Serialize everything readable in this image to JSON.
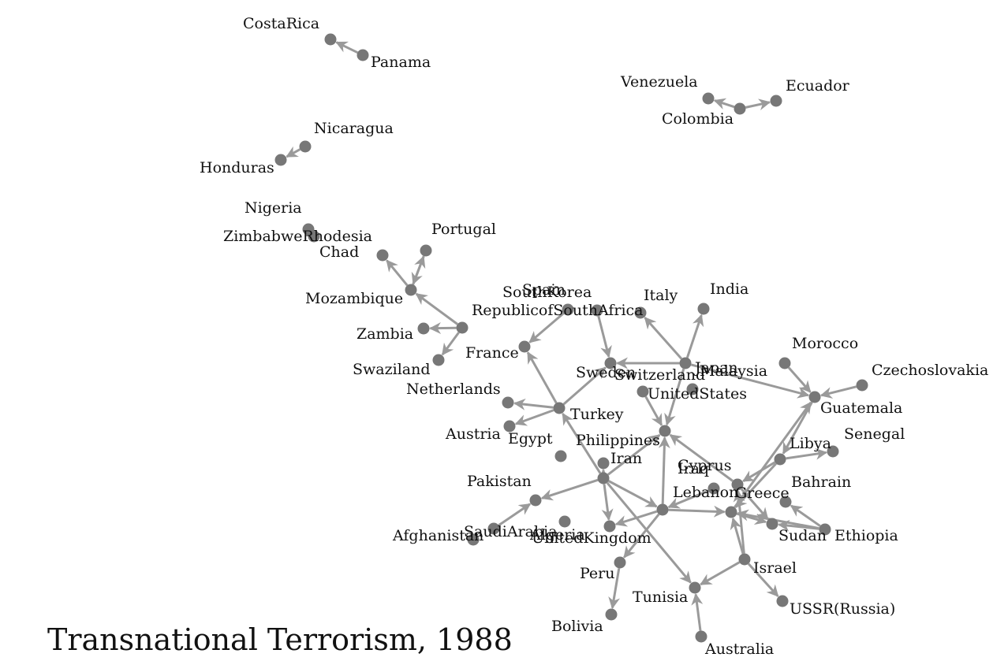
{
  "title": "Transnational Terrorism, 1988",
  "colors": {
    "node": "#777777",
    "edge": "#9a9a9a",
    "label": "#111111",
    "background": "#ffffff"
  },
  "nodes": [
    {
      "id": "CostaRica",
      "label": "CostaRica"
    },
    {
      "id": "Panama",
      "label": "Panama"
    },
    {
      "id": "Venezuela",
      "label": "Venezuela"
    },
    {
      "id": "Colombia",
      "label": "Colombia"
    },
    {
      "id": "Ecuador",
      "label": "Ecuador"
    },
    {
      "id": "Nicaragua",
      "label": "Nicaragua"
    },
    {
      "id": "Honduras",
      "label": "Honduras"
    },
    {
      "id": "Nigeria",
      "label": "Nigeria"
    },
    {
      "id": "ZimbabweRhodesia",
      "label": "ZimbabweRhodesia"
    },
    {
      "id": "Chad",
      "label": "Chad"
    },
    {
      "id": "Portugal",
      "label": "Portugal"
    },
    {
      "id": "Mozambique",
      "label": "Mozambique"
    },
    {
      "id": "Zambia",
      "label": "Zambia"
    },
    {
      "id": "Swaziland",
      "label": "Swaziland"
    },
    {
      "id": "RepublicofSouthAfrica",
      "label": "RepublicofSouthAfrica"
    },
    {
      "id": "France",
      "label": "France"
    },
    {
      "id": "Spain",
      "label": "Spain"
    },
    {
      "id": "SouthKorea",
      "label": "SouthKorea"
    },
    {
      "id": "Italy",
      "label": "Italy"
    },
    {
      "id": "India",
      "label": "India"
    },
    {
      "id": "Netherlands",
      "label": "Netherlands"
    },
    {
      "id": "Austria",
      "label": "Austria"
    },
    {
      "id": "Turkey",
      "label": "Turkey"
    },
    {
      "id": "Egypt",
      "label": "Egypt"
    },
    {
      "id": "Sweden",
      "label": "Sweden"
    },
    {
      "id": "Switzerland",
      "label": "Switzerland"
    },
    {
      "id": "Japan",
      "label": "Japan"
    },
    {
      "id": "Malaysia",
      "label": "Malaysia"
    },
    {
      "id": "UnitedStates",
      "label": "UnitedStates"
    },
    {
      "id": "Morocco",
      "label": "Morocco"
    },
    {
      "id": "Czechoslovakia",
      "label": "Czechoslovakia"
    },
    {
      "id": "Guatemala",
      "label": "Guatemala"
    },
    {
      "id": "Philippines",
      "label": "Philippines"
    },
    {
      "id": "Iran",
      "label": "Iran"
    },
    {
      "id": "Libya",
      "label": "Libya"
    },
    {
      "id": "Senegal",
      "label": "Senegal"
    },
    {
      "id": "Cyprus",
      "label": "Cyprus"
    },
    {
      "id": "Iraq",
      "label": "Iraq"
    },
    {
      "id": "Pakistan",
      "label": "Pakistan"
    },
    {
      "id": "Lebanon",
      "label": "Lebanon"
    },
    {
      "id": "Greece",
      "label": "Greece"
    },
    {
      "id": "Bahrain",
      "label": "Bahrain"
    },
    {
      "id": "SaudiArabia",
      "label": "SaudiArabia"
    },
    {
      "id": "Algeria",
      "label": "Algeria"
    },
    {
      "id": "Afghanistan",
      "label": "Afghanistan"
    },
    {
      "id": "UnitedKingdom",
      "label": "UnitedKingdom"
    },
    {
      "id": "Sudan",
      "label": "Sudan"
    },
    {
      "id": "Ethiopia",
      "label": "Ethiopia"
    },
    {
      "id": "Peru",
      "label": "Peru"
    },
    {
      "id": "Israel",
      "label": "Israel"
    },
    {
      "id": "Tunisia",
      "label": "Tunisia"
    },
    {
      "id": "USSR",
      "label": "USSR(Russia)"
    },
    {
      "id": "Bolivia",
      "label": "Bolivia"
    },
    {
      "id": "Australia",
      "label": "Australia"
    }
  ],
  "edges": [
    [
      "Panama",
      "CostaRica"
    ],
    [
      "Colombia",
      "Venezuela"
    ],
    [
      "Colombia",
      "Ecuador"
    ],
    [
      "Nicaragua",
      "Honduras"
    ],
    [
      "RepublicofSouthAfrica",
      "Mozambique"
    ],
    [
      "RepublicofSouthAfrica",
      "Zambia"
    ],
    [
      "RepublicofSouthAfrica",
      "Swaziland"
    ],
    [
      "Mozambique",
      "Chad"
    ],
    [
      "Mozambique",
      "Portugal"
    ],
    [
      "Portugal",
      "Mozambique"
    ],
    [
      "Spain",
      "France"
    ],
    [
      "SouthKorea",
      "Sweden"
    ],
    [
      "Turkey",
      "France"
    ],
    [
      "Turkey",
      "Netherlands"
    ],
    [
      "Turkey",
      "Austria"
    ],
    [
      "Turkey",
      "Sweden"
    ],
    [
      "Japan",
      "Sweden"
    ],
    [
      "Japan",
      "Italy"
    ],
    [
      "Japan",
      "India"
    ],
    [
      "Japan",
      "UnitedStates"
    ],
    [
      "Japan",
      "Guatemala"
    ],
    [
      "Switzerland",
      "UnitedStates"
    ],
    [
      "Iran",
      "UnitedStates"
    ],
    [
      "Iran",
      "Turkey"
    ],
    [
      "Iran",
      "Pakistan"
    ],
    [
      "Iran",
      "Philippines"
    ],
    [
      "Iran",
      "UnitedKingdom"
    ],
    [
      "Iran",
      "Lebanon"
    ],
    [
      "Iran",
      "Tunisia"
    ],
    [
      "Guatemala",
      "Libya"
    ],
    [
      "Morocco",
      "Guatemala"
    ],
    [
      "Czechoslovakia",
      "Guatemala"
    ],
    [
      "Libya",
      "Senegal"
    ],
    [
      "Libya",
      "Cyprus"
    ],
    [
      "Libya",
      "Greece"
    ],
    [
      "Lebanon",
      "Greece"
    ],
    [
      "Lebanon",
      "UnitedKingdom"
    ],
    [
      "Lebanon",
      "Peru"
    ],
    [
      "Lebanon",
      "UnitedStates"
    ],
    [
      "Cyprus",
      "UnitedStates"
    ],
    [
      "Cyprus",
      "Sudan"
    ],
    [
      "Iraq",
      "Lebanon"
    ],
    [
      "Greece",
      "Guatemala"
    ],
    [
      "Greece",
      "Sudan"
    ],
    [
      "Ethiopia",
      "Greece"
    ],
    [
      "Ethiopia",
      "Bahrain"
    ],
    [
      "Ethiopia",
      "Sudan"
    ],
    [
      "Israel",
      "Tunisia"
    ],
    [
      "Israel",
      "Greece"
    ],
    [
      "Israel",
      "Cyprus"
    ],
    [
      "Israel",
      "USSR"
    ],
    [
      "SaudiArabia",
      "Pakistan"
    ],
    [
      "Peru",
      "Bolivia"
    ],
    [
      "Australia",
      "Tunisia"
    ]
  ]
}
